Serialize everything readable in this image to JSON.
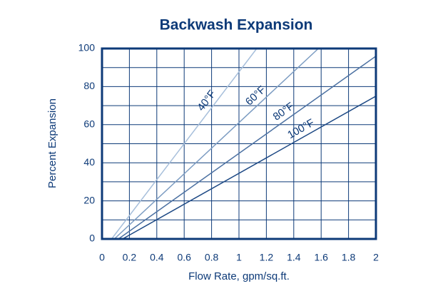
{
  "chart_data": {
    "type": "line",
    "title": "Backwash Expansion",
    "x_label": "Flow Rate, gpm/sq.ft.",
    "y_label": "Percent Expansion",
    "series": [
      {
        "name": "40°F",
        "color": "#a7bfdb",
        "x": [
          0.07,
          1.13
        ],
        "values": [
          0,
          100
        ]
      },
      {
        "name": "60°F",
        "color": "#7c9cc2",
        "x": [
          0.09,
          1.58
        ],
        "values": [
          0,
          100
        ]
      },
      {
        "name": "80°F",
        "color": "#4c71a2",
        "x": [
          0.12,
          2
        ],
        "values": [
          0,
          96
        ]
      },
      {
        "name": "100°F",
        "color": "#1c4884",
        "x": [
          0.15,
          2
        ],
        "values": [
          0,
          75
        ]
      }
    ],
    "xlim": [
      0,
      2
    ],
    "ylim": [
      0,
      100
    ],
    "xticks": [
      0,
      0.2,
      0.4,
      0.6,
      0.8,
      1,
      1.2,
      1.4,
      1.6,
      1.8,
      2
    ],
    "yticks": [
      0,
      20,
      40,
      60,
      80,
      100
    ],
    "minor_yticks": [
      10,
      30,
      50,
      70,
      90
    ],
    "grid": true,
    "axis_color": "#0d3a78",
    "grid_color": "#0d3a78"
  }
}
